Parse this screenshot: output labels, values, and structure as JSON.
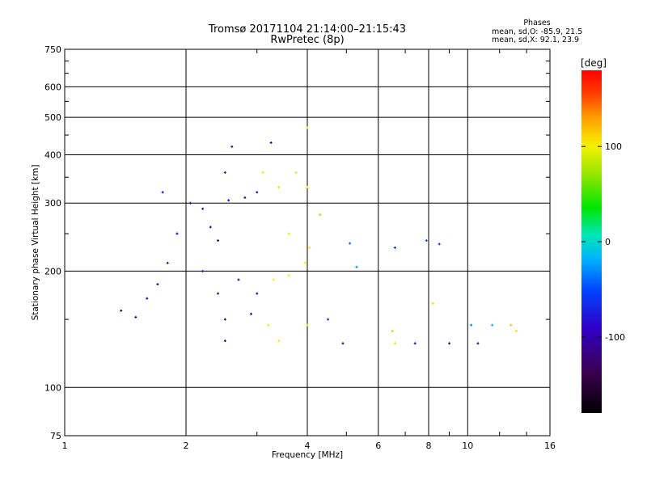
{
  "title": "Tromsø 20171104 21:14:00–21:15:43",
  "subtitle": "RwPretec (8p)",
  "phases": {
    "heading": "Phases",
    "o_mode": "mean, sd,O: -85.9, 21.5",
    "x_mode": "mean, sd,X:  92.1, 23.9"
  },
  "chart_data": {
    "type": "scatter",
    "xlabel": "Frequency [MHz]",
    "ylabel": "Stationary phase Virtual Height [km]",
    "x_scale": "log",
    "y_scale": "log",
    "xlim": [
      1,
      16
    ],
    "ylim": [
      75,
      750
    ],
    "x_ticks": [
      1,
      2,
      4,
      6,
      8,
      10,
      16
    ],
    "x_tick_labels": [
      "1",
      "2",
      "4",
      "6",
      "8",
      "10",
      "16"
    ],
    "y_ticks": [
      75,
      100,
      200,
      300,
      400,
      500,
      600,
      750
    ],
    "y_tick_labels": [
      "75",
      "100",
      "200",
      "300",
      "400",
      "500",
      "600",
      "750"
    ],
    "grid": true,
    "colorbar": {
      "label": "[deg]",
      "range": [
        -180,
        180
      ],
      "ticks": [
        100,
        0,
        -100
      ],
      "tick_labels": [
        "100",
        "0",
        "-100"
      ]
    },
    "series": [
      {
        "values": [
          {
            "x": 1.38,
            "y": 158,
            "phase": -120
          },
          {
            "x": 1.5,
            "y": 152,
            "phase": -115
          },
          {
            "x": 1.6,
            "y": 170,
            "phase": -100
          },
          {
            "x": 1.7,
            "y": 185,
            "phase": -95
          },
          {
            "x": 1.8,
            "y": 210,
            "phase": -90
          },
          {
            "x": 1.9,
            "y": 250,
            "phase": -90
          },
          {
            "x": 1.75,
            "y": 320,
            "phase": -85
          },
          {
            "x": 2.05,
            "y": 300,
            "phase": -90
          },
          {
            "x": 2.2,
            "y": 290,
            "phase": -88
          },
          {
            "x": 2.3,
            "y": 260,
            "phase": -95
          },
          {
            "x": 2.4,
            "y": 240,
            "phase": -92
          },
          {
            "x": 2.55,
            "y": 305,
            "phase": -85
          },
          {
            "x": 2.8,
            "y": 310,
            "phase": -80
          },
          {
            "x": 3.0,
            "y": 320,
            "phase": -100
          },
          {
            "x": 2.2,
            "y": 200,
            "phase": -85
          },
          {
            "x": 2.4,
            "y": 175,
            "phase": -98
          },
          {
            "x": 2.7,
            "y": 190,
            "phase": -105
          },
          {
            "x": 3.0,
            "y": 175,
            "phase": -95
          },
          {
            "x": 2.5,
            "y": 150,
            "phase": -110
          },
          {
            "x": 2.9,
            "y": 155,
            "phase": -100
          },
          {
            "x": 2.5,
            "y": 132,
            "phase": -105
          },
          {
            "x": 2.5,
            "y": 360,
            "phase": -80
          },
          {
            "x": 2.6,
            "y": 420,
            "phase": -85
          },
          {
            "x": 3.25,
            "y": 430,
            "phase": -100
          },
          {
            "x": 3.1,
            "y": 360,
            "phase": 95
          },
          {
            "x": 3.4,
            "y": 330,
            "phase": 90
          },
          {
            "x": 3.75,
            "y": 360,
            "phase": 95
          },
          {
            "x": 4.0,
            "y": 330,
            "phase": 100
          },
          {
            "x": 4.05,
            "y": 230,
            "phase": 105
          },
          {
            "x": 3.95,
            "y": 210,
            "phase": 100
          },
          {
            "x": 3.6,
            "y": 195,
            "phase": 95
          },
          {
            "x": 3.3,
            "y": 190,
            "phase": 100
          },
          {
            "x": 3.6,
            "y": 250,
            "phase": 95
          },
          {
            "x": 4.3,
            "y": 280,
            "phase": 120
          },
          {
            "x": 4.0,
            "y": 470,
            "phase": 100
          },
          {
            "x": 3.2,
            "y": 145,
            "phase": 105
          },
          {
            "x": 3.4,
            "y": 132,
            "phase": 100
          },
          {
            "x": 4.0,
            "y": 145,
            "phase": 110
          },
          {
            "x": 4.5,
            "y": 150,
            "phase": -60
          },
          {
            "x": 4.9,
            "y": 130,
            "phase": -120
          },
          {
            "x": 5.1,
            "y": 236,
            "phase": -40
          },
          {
            "x": 5.3,
            "y": 205,
            "phase": -30
          },
          {
            "x": 6.5,
            "y": 140,
            "phase": 115
          },
          {
            "x": 6.6,
            "y": 230,
            "phase": -70
          },
          {
            "x": 6.6,
            "y": 130,
            "phase": 90
          },
          {
            "x": 7.4,
            "y": 130,
            "phase": -100
          },
          {
            "x": 7.9,
            "y": 240,
            "phase": -50
          },
          {
            "x": 8.2,
            "y": 165,
            "phase": 110
          },
          {
            "x": 8.5,
            "y": 235,
            "phase": -60
          },
          {
            "x": 9.0,
            "y": 130,
            "phase": -110
          },
          {
            "x": 10.2,
            "y": 145,
            "phase": -30
          },
          {
            "x": 10.6,
            "y": 130,
            "phase": -100
          },
          {
            "x": 11.5,
            "y": 145,
            "phase": -20
          },
          {
            "x": 12.8,
            "y": 145,
            "phase": 120
          },
          {
            "x": 13.2,
            "y": 140,
            "phase": 110
          }
        ]
      }
    ]
  }
}
